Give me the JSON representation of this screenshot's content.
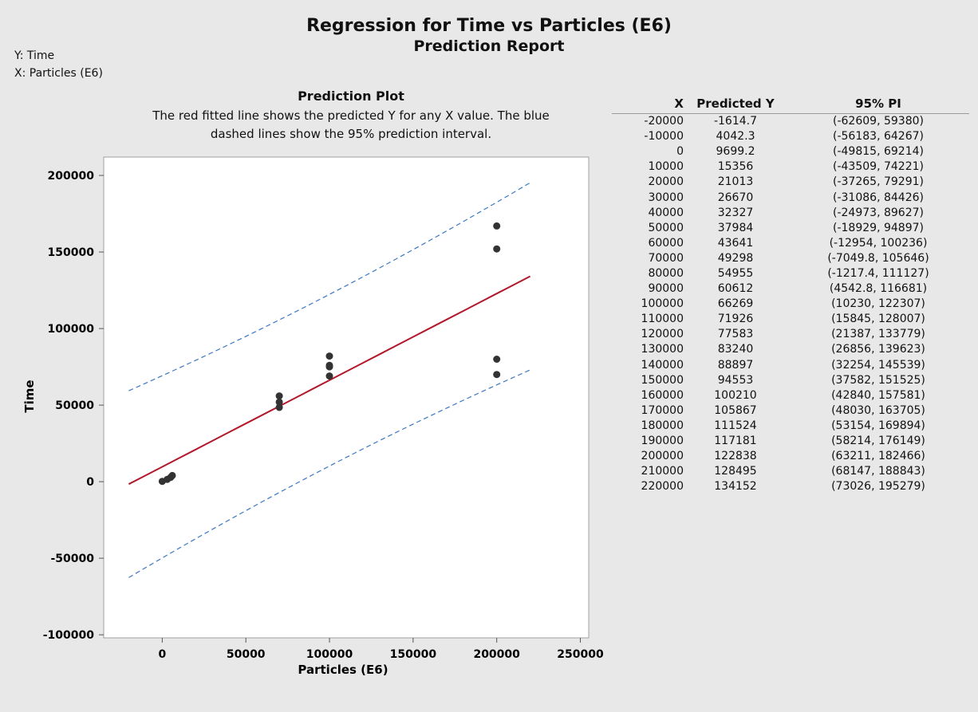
{
  "header": {
    "title": "Regression for Time vs Particles (E6)",
    "subtitle": "Prediction Report"
  },
  "variables": {
    "y": "Y: Time",
    "x": "X: Particles (E6)"
  },
  "plot": {
    "title": "Prediction Plot",
    "description_line1": "The red fitted line shows the predicted Y for any X value. The blue",
    "description_line2": "dashed lines show the 95% prediction interval."
  },
  "colors": {
    "background": "#e8e8e8",
    "plot_area": "#ffffff",
    "fit_line": "#b2182b",
    "pi_line": "#3a78c3",
    "points": "#333333"
  },
  "chart_data": {
    "type": "scatter",
    "title": "Prediction Plot",
    "xlabel": "Particles (E6)",
    "ylabel": "Time",
    "xlim": [
      -35000,
      255000
    ],
    "ylim": [
      -102000,
      212000
    ],
    "xticks": [
      0,
      50000,
      100000,
      150000,
      200000,
      250000
    ],
    "yticks": [
      -100000,
      -50000,
      0,
      50000,
      100000,
      150000,
      200000
    ],
    "grid": false,
    "points": [
      {
        "x": 0,
        "y": 200
      },
      {
        "x": 3000,
        "y": 1500
      },
      {
        "x": 5000,
        "y": 2800
      },
      {
        "x": 6000,
        "y": 4000
      },
      {
        "x": 70000,
        "y": 48500
      },
      {
        "x": 70000,
        "y": 52000
      },
      {
        "x": 70000,
        "y": 56000
      },
      {
        "x": 100000,
        "y": 69000
      },
      {
        "x": 100000,
        "y": 75000
      },
      {
        "x": 100000,
        "y": 76000
      },
      {
        "x": 100000,
        "y": 82000
      },
      {
        "x": 200000,
        "y": 70000
      },
      {
        "x": 200000,
        "y": 80000
      },
      {
        "x": 200000,
        "y": 152000
      },
      {
        "x": 200000,
        "y": 167000
      }
    ]
  },
  "table": {
    "headers": [
      "X",
      "Predicted Y",
      "95% PI"
    ],
    "rows": [
      [
        "-20000",
        "-1614.7",
        "(-62609, 59380)"
      ],
      [
        "-10000",
        "4042.3",
        "(-56183, 64267)"
      ],
      [
        "0",
        "9699.2",
        "(-49815, 69214)"
      ],
      [
        "10000",
        "15356",
        "(-43509, 74221)"
      ],
      [
        "20000",
        "21013",
        "(-37265, 79291)"
      ],
      [
        "30000",
        "26670",
        "(-31086, 84426)"
      ],
      [
        "40000",
        "32327",
        "(-24973, 89627)"
      ],
      [
        "50000",
        "37984",
        "(-18929, 94897)"
      ],
      [
        "60000",
        "43641",
        "(-12954, 100236)"
      ],
      [
        "70000",
        "49298",
        "(-7049.8, 105646)"
      ],
      [
        "80000",
        "54955",
        "(-1217.4, 111127)"
      ],
      [
        "90000",
        "60612",
        "(4542.8, 116681)"
      ],
      [
        "100000",
        "66269",
        "(10230, 122307)"
      ],
      [
        "110000",
        "71926",
        "(15845, 128007)"
      ],
      [
        "120000",
        "77583",
        "(21387, 133779)"
      ],
      [
        "130000",
        "83240",
        "(26856, 139623)"
      ],
      [
        "140000",
        "88897",
        "(32254, 145539)"
      ],
      [
        "150000",
        "94553",
        "(37582, 151525)"
      ],
      [
        "160000",
        "100210",
        "(42840, 157581)"
      ],
      [
        "170000",
        "105867",
        "(48030, 163705)"
      ],
      [
        "180000",
        "111524",
        "(53154, 169894)"
      ],
      [
        "190000",
        "117181",
        "(58214, 176149)"
      ],
      [
        "200000",
        "122838",
        "(63211, 182466)"
      ],
      [
        "210000",
        "128495",
        "(68147, 188843)"
      ],
      [
        "220000",
        "134152",
        "(73026, 195279)"
      ]
    ]
  }
}
